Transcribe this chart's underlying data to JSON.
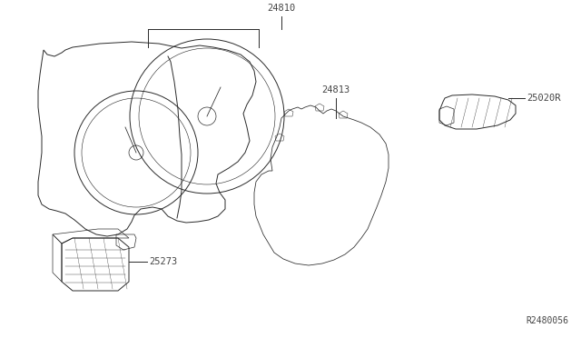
{
  "bg_color": "#ffffff",
  "line_color": "#2a2a2a",
  "label_color": "#444444",
  "ref_number": "R2480056",
  "parts": [
    "24810",
    "24813",
    "25020R",
    "25273"
  ],
  "figsize": [
    6.4,
    3.72
  ],
  "dpi": 100
}
